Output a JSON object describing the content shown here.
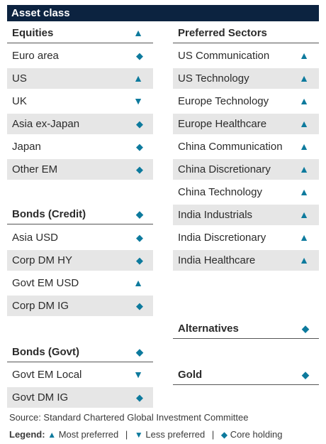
{
  "title": "Asset class",
  "symbols": {
    "most_preferred": "▲",
    "less_preferred": "▼",
    "core_holding": "◆"
  },
  "colors": {
    "title_bg": "#0c2340",
    "glyph": "#0d7a9d",
    "shade": "#e6e6e6"
  },
  "equities": {
    "header": "Equities",
    "header_status": "▲",
    "items": [
      {
        "label": "Euro area",
        "status": "◆"
      },
      {
        "label": "US",
        "status": "▲"
      },
      {
        "label": "UK",
        "status": "▼"
      },
      {
        "label": "Asia ex-Japan",
        "status": "◆"
      },
      {
        "label": "Japan",
        "status": "◆"
      },
      {
        "label": "Other EM",
        "status": "◆"
      }
    ]
  },
  "bonds_credit": {
    "header": "Bonds (Credit)",
    "header_status": "◆",
    "items": [
      {
        "label": "Asia USD",
        "status": "◆"
      },
      {
        "label": "Corp DM HY",
        "status": "◆"
      },
      {
        "label": "Govt EM USD",
        "status": "▲"
      },
      {
        "label": "Corp DM IG",
        "status": "◆"
      }
    ]
  },
  "bonds_govt": {
    "header": "Bonds (Govt)",
    "header_status": "◆",
    "items": [
      {
        "label": "Govt EM Local",
        "status": "▼"
      },
      {
        "label": "Govt DM IG",
        "status": "◆"
      }
    ]
  },
  "preferred_sectors": {
    "header": "Preferred Sectors",
    "items": [
      {
        "label": "US Communication",
        "status": "▲"
      },
      {
        "label": "US Technology",
        "status": "▲"
      },
      {
        "label": "Europe Technology",
        "status": "▲"
      },
      {
        "label": "Europe Healthcare",
        "status": "▲"
      },
      {
        "label": "China Communication",
        "status": "▲"
      },
      {
        "label": "China Discretionary",
        "status": "▲"
      },
      {
        "label": "China Technology",
        "status": "▲"
      },
      {
        "label": "India Industrials",
        "status": "▲"
      },
      {
        "label": "India Discretionary",
        "status": "▲"
      },
      {
        "label": "India Healthcare",
        "status": "▲"
      }
    ]
  },
  "alternatives": {
    "header": "Alternatives",
    "status": "◆"
  },
  "gold": {
    "header": "Gold",
    "status": "◆"
  },
  "footer": {
    "source": "Source: Standard Chartered Global Investment Committee",
    "legend_title": "Legend:",
    "most_preferred": "Most preferred",
    "less_preferred": "Less preferred",
    "core_holding": "Core holding",
    "separator": "|"
  }
}
